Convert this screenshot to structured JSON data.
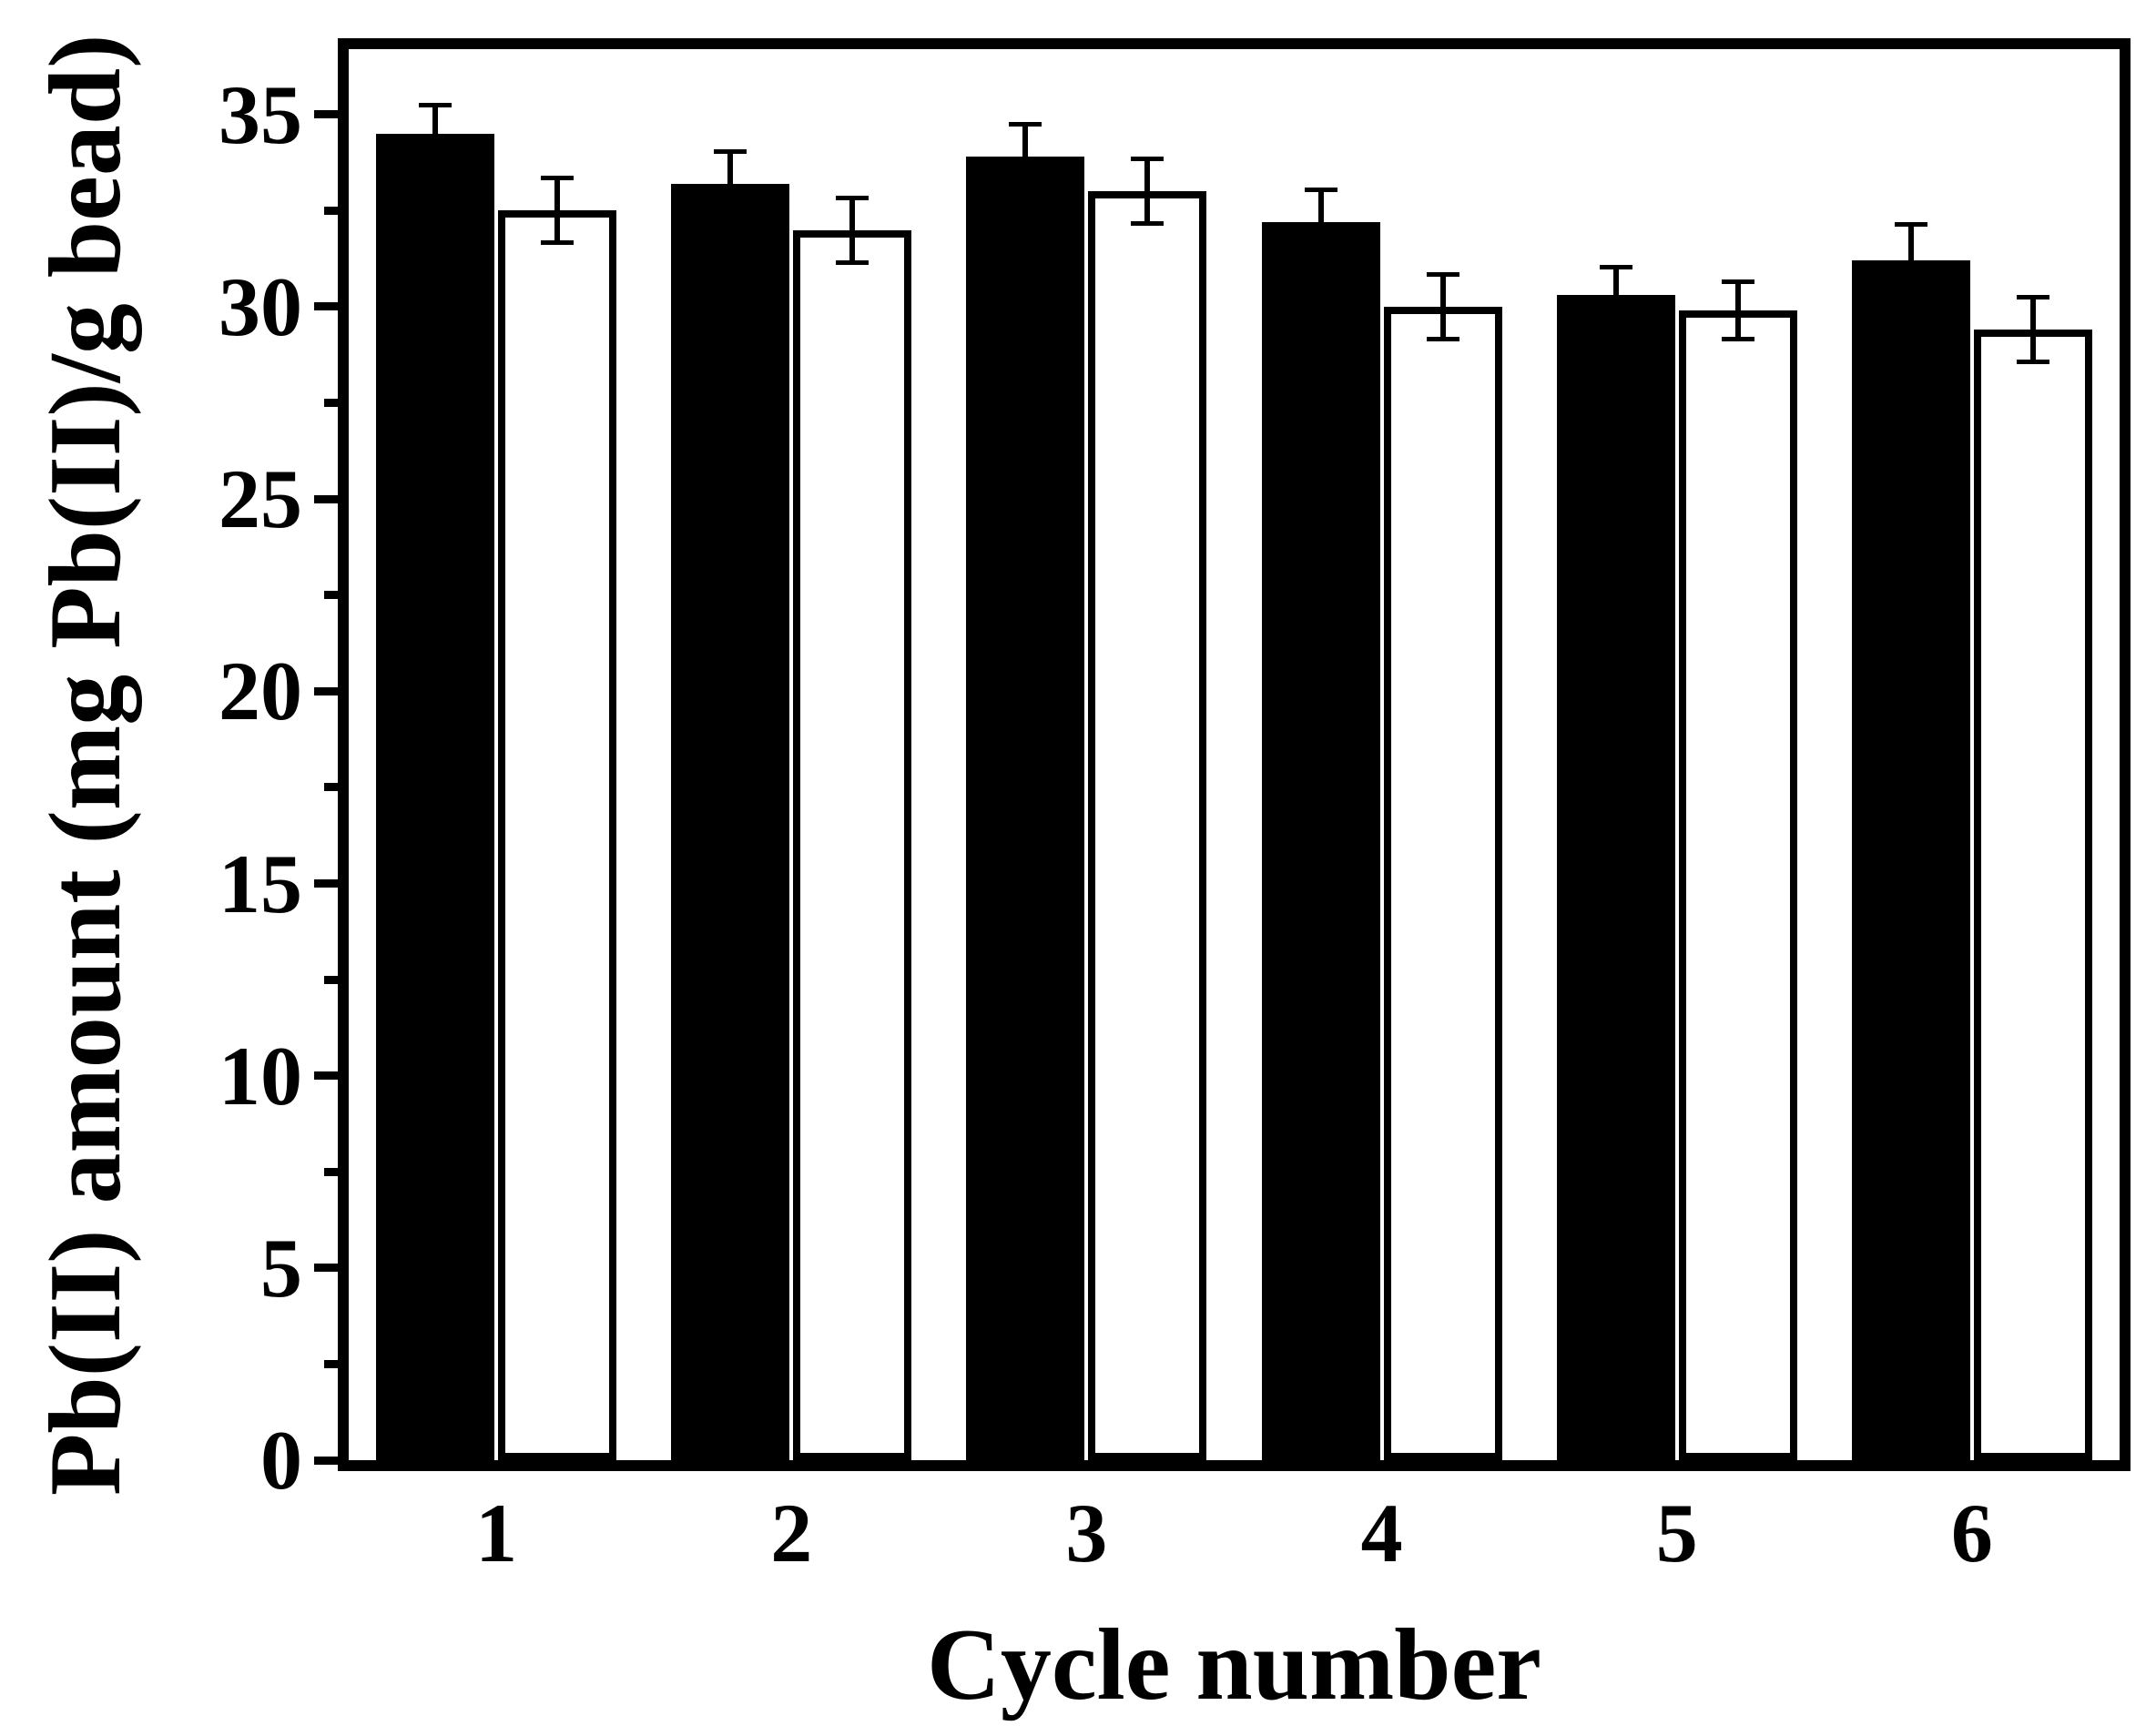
{
  "figure": {
    "background": "#ffffff",
    "foreground": "#000000"
  },
  "chart_data": {
    "type": "bar",
    "title": "",
    "xlabel": "Cycle number",
    "ylabel": "Pb(II) amount (mg Pb(II)/g bead)",
    "categories": [
      "1",
      "2",
      "3",
      "4",
      "5",
      "6"
    ],
    "series": [
      {
        "name": "black-filled-bars",
        "fill": "#000000",
        "stroke": "#000000",
        "values": [
          34.5,
          33.2,
          33.9,
          32.2,
          30.3,
          31.2
        ],
        "errors": [
          0.8,
          0.9,
          0.9,
          0.9,
          0.8,
          1.0
        ]
      },
      {
        "name": "white-open-bars",
        "fill": "#ffffff",
        "stroke": "#000000",
        "values": [
          32.5,
          32.0,
          33.0,
          30.0,
          29.9,
          29.4
        ],
        "errors": [
          0.9,
          0.9,
          0.9,
          0.9,
          0.8,
          0.9
        ]
      }
    ],
    "error_bars": true,
    "grid": false,
    "legend": null,
    "ylim": [
      0,
      36.7
    ],
    "yticks_major": [
      0,
      5,
      10,
      15,
      20,
      25,
      30,
      35
    ],
    "yticks_minor": [
      2.5,
      7.5,
      12.5,
      17.5,
      22.5,
      27.5,
      32.5
    ],
    "ytick_labels": [
      "0",
      "5",
      "10",
      "15",
      "20",
      "25",
      "30",
      "35"
    ]
  }
}
